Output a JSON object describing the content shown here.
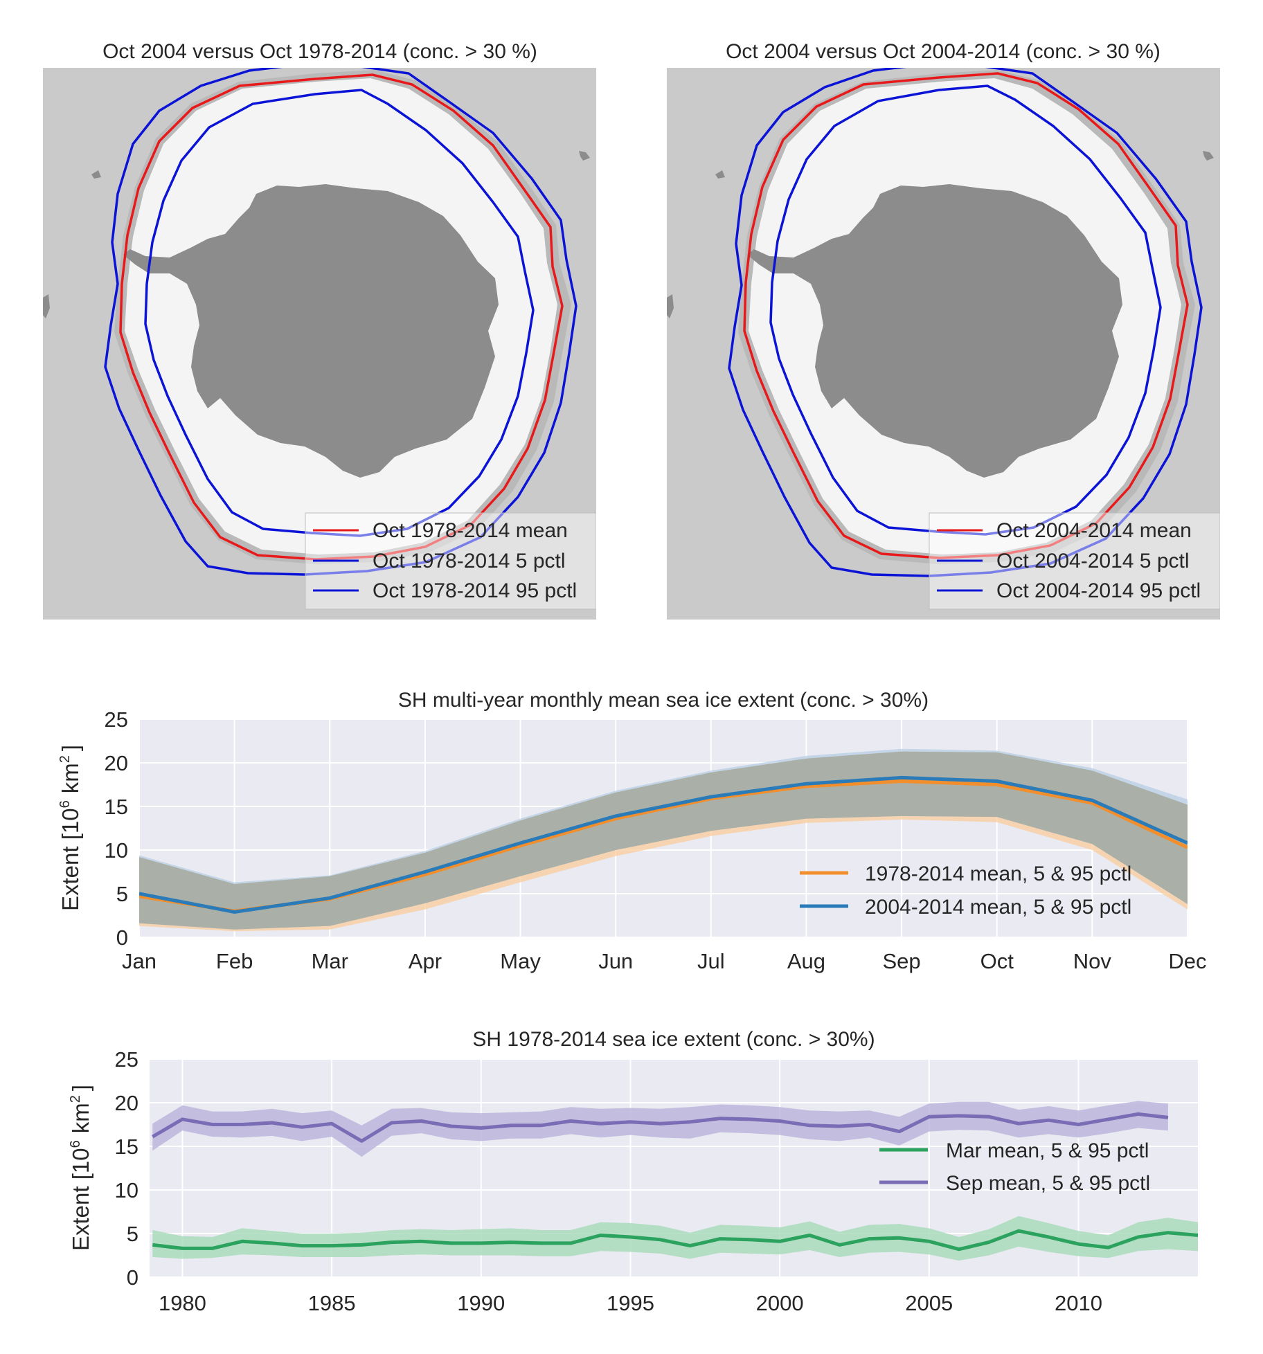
{
  "colors": {
    "ocean": "#cacaca",
    "ice": "#f4f4f4",
    "ice_edge_shade": "#b9b9b9",
    "land": "#8c8c8c",
    "mean_line": "#e8191b",
    "pctl_line": "#0b14d6",
    "plot_bg": "#eaeaf2",
    "grid": "#ffffff",
    "orange": "#f28e2b",
    "orange_band": "#f9cc9c",
    "blue": "#2b7bb9",
    "blue_band": "#a9c6df",
    "overlap_band": "#aab0a8",
    "green": "#2ca25f",
    "green_band": "#a9dcbc",
    "purple": "#7a6cb5",
    "purple_band": "#bcb5dc"
  },
  "maps": [
    {
      "title": "Oct 2004 versus Oct 1978-2014 (conc. > 30 %)",
      "legend": [
        "Oct 1978-2014 mean",
        "Oct 1978-2014 5 pctl",
        "Oct 1978-2014 95 pctl"
      ]
    },
    {
      "title": "Oct 2004 versus Oct 2004-2014 (conc. > 30 %)",
      "legend": [
        "Oct 2004-2014 mean",
        "Oct 2004-2014 5 pctl",
        "Oct 2004-2014 95 pctl"
      ]
    }
  ],
  "chart_data": [
    {
      "type": "area",
      "title": "SH multi-year monthly mean sea ice extent (conc. > 30%)",
      "ylabel": "Extent [10^6 km^2]",
      "ylabel_base": "Extent [10",
      "ylabel_exp": "6",
      "ylabel_unit": "km",
      "ylabel_unit_exp": "2",
      "ylabel_close": "]",
      "ylim": [
        0,
        25
      ],
      "yticks": [
        0,
        5,
        10,
        15,
        20,
        25
      ],
      "categories": [
        "Jan",
        "Feb",
        "Mar",
        "Apr",
        "May",
        "Jun",
        "Jul",
        "Aug",
        "Sep",
        "Oct",
        "Nov",
        "Dec"
      ],
      "grid": true,
      "legend_position": "lower-right",
      "series": [
        {
          "name": "1978-2014 mean, 5 & 95 pctl",
          "mean": [
            4.7,
            3.0,
            4.4,
            7.2,
            10.5,
            13.6,
            15.9,
            17.3,
            17.9,
            17.5,
            15.4,
            10.3
          ],
          "p5": [
            1.3,
            0.7,
            0.9,
            3.2,
            6.3,
            9.3,
            11.6,
            13.1,
            13.5,
            13.2,
            10.0,
            3.2
          ],
          "p95": [
            9.2,
            6.1,
            7.0,
            9.7,
            13.4,
            16.6,
            18.9,
            20.5,
            21.3,
            21.2,
            19.1,
            15.2
          ],
          "color": "#f28e2b"
        },
        {
          "name": "2004-2014 mean, 5 & 95 pctl",
          "mean": [
            5.0,
            2.9,
            4.5,
            7.5,
            10.8,
            13.9,
            16.1,
            17.6,
            18.3,
            17.9,
            15.7,
            10.8
          ],
          "p5": [
            1.6,
            0.9,
            1.3,
            3.9,
            7.0,
            10.0,
            12.2,
            13.6,
            13.9,
            13.8,
            10.7,
            3.8
          ],
          "p95": [
            9.4,
            6.3,
            7.1,
            9.9,
            13.6,
            16.8,
            19.1,
            20.8,
            21.6,
            21.4,
            19.4,
            15.8
          ],
          "color": "#2b7bb9"
        }
      ]
    },
    {
      "type": "line",
      "title": "SH 1978-2014 sea ice extent (conc. > 30%)",
      "ylabel": "Extent [10^6 km^2]",
      "ylim": [
        0,
        25
      ],
      "yticks": [
        0,
        5,
        10,
        15,
        20,
        25
      ],
      "xlim": [
        1978.9,
        2014.0
      ],
      "xticks": [
        1980,
        1985,
        1990,
        1995,
        2000,
        2005,
        2010
      ],
      "grid": true,
      "legend_position": "center-right",
      "series": [
        {
          "name": "Mar mean, 5 & 95 pctl",
          "x": [
            1979,
            1980,
            1981,
            1982,
            1983,
            1984,
            1985,
            1986,
            1987,
            1988,
            1989,
            1990,
            1991,
            1992,
            1993,
            1994,
            1995,
            1996,
            1997,
            1998,
            1999,
            2000,
            2001,
            2002,
            2003,
            2004,
            2005,
            2006,
            2007,
            2008,
            2009,
            2010,
            2011,
            2012,
            2013,
            2014
          ],
          "mean": [
            3.7,
            3.3,
            3.3,
            4.1,
            3.9,
            3.6,
            3.6,
            3.7,
            4.0,
            4.1,
            3.9,
            3.9,
            4.0,
            3.9,
            3.9,
            4.8,
            4.6,
            4.3,
            3.6,
            4.4,
            4.3,
            4.1,
            4.8,
            3.7,
            4.4,
            4.5,
            4.1,
            3.2,
            4.0,
            5.3,
            4.6,
            3.8,
            3.4,
            4.6,
            5.1,
            4.8
          ],
          "lo": [
            2.3,
            2.1,
            2.2,
            2.6,
            2.5,
            2.3,
            2.3,
            2.3,
            2.5,
            2.6,
            2.5,
            2.5,
            2.5,
            2.4,
            2.4,
            3.0,
            2.9,
            2.7,
            2.1,
            2.8,
            2.7,
            2.6,
            3.1,
            2.3,
            2.8,
            2.9,
            2.6,
            1.9,
            2.5,
            3.5,
            2.9,
            2.4,
            2.2,
            3.0,
            3.2,
            3.0
          ],
          "hi": [
            5.4,
            4.7,
            4.6,
            5.6,
            5.3,
            5.0,
            5.0,
            5.1,
            5.4,
            5.5,
            5.4,
            5.5,
            5.6,
            5.4,
            5.4,
            6.3,
            6.2,
            5.9,
            5.1,
            6.0,
            5.9,
            5.7,
            6.4,
            5.2,
            6.0,
            6.1,
            5.6,
            4.6,
            5.5,
            7.0,
            6.2,
            5.3,
            4.8,
            6.3,
            6.8,
            6.3
          ],
          "color": "#2ca25f"
        },
        {
          "name": "Sep mean, 5 & 95 pctl",
          "x": [
            1979,
            1980,
            1981,
            1982,
            1983,
            1984,
            1985,
            1986,
            1987,
            1988,
            1989,
            1990,
            1991,
            1992,
            1993,
            1994,
            1995,
            1996,
            1997,
            1998,
            1999,
            2000,
            2001,
            2002,
            2003,
            2004,
            2005,
            2006,
            2007,
            2008,
            2009,
            2010,
            2011,
            2012,
            2013
          ],
          "mean": [
            16.1,
            18.1,
            17.5,
            17.5,
            17.7,
            17.2,
            17.6,
            15.6,
            17.7,
            17.9,
            17.3,
            17.1,
            17.4,
            17.4,
            17.9,
            17.6,
            17.8,
            17.6,
            17.8,
            18.2,
            18.1,
            17.9,
            17.4,
            17.3,
            17.5,
            16.7,
            18.4,
            18.5,
            18.4,
            17.6,
            18.0,
            17.5,
            18.1,
            18.7,
            18.3
          ],
          "lo": [
            14.5,
            16.8,
            16.1,
            16.0,
            16.2,
            15.6,
            16.1,
            13.8,
            16.2,
            16.5,
            15.8,
            15.6,
            15.9,
            15.9,
            16.4,
            16.0,
            16.3,
            16.0,
            15.9,
            16.6,
            16.5,
            16.3,
            15.8,
            15.6,
            16.0,
            15.1,
            16.7,
            16.9,
            16.8,
            16.0,
            16.4,
            16.0,
            16.5,
            17.1,
            16.8
          ],
          "hi": [
            17.6,
            19.7,
            19.0,
            19.0,
            19.3,
            18.8,
            19.1,
            17.4,
            19.3,
            19.4,
            18.9,
            18.8,
            18.9,
            19.0,
            19.5,
            19.3,
            19.4,
            19.3,
            19.5,
            19.8,
            19.7,
            19.5,
            19.1,
            19.0,
            19.1,
            18.4,
            19.9,
            20.1,
            20.1,
            19.2,
            19.6,
            19.1,
            19.7,
            20.2,
            19.9
          ],
          "color": "#7a6cb5"
        }
      ]
    }
  ]
}
